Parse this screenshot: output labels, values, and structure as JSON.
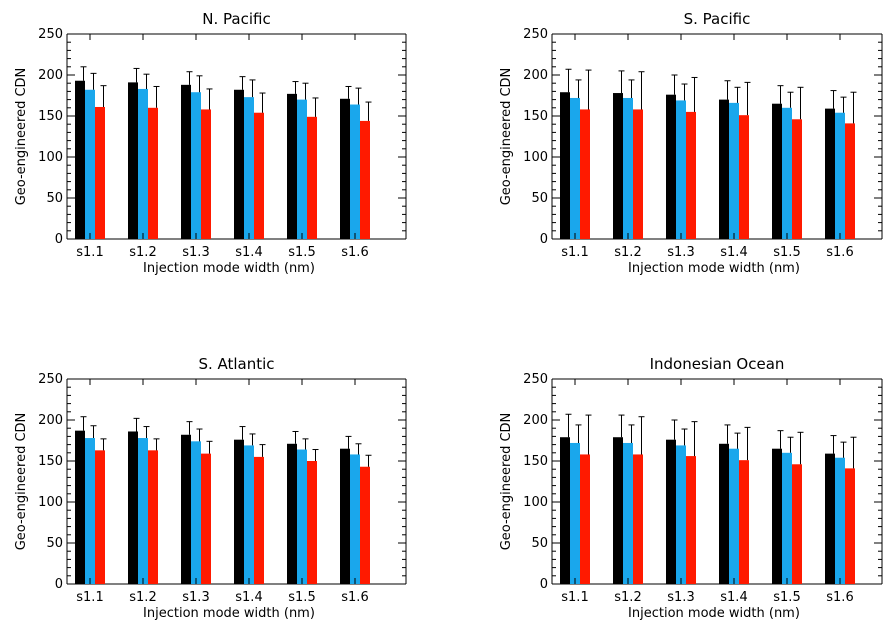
{
  "chart_data": [
    {
      "type": "bar",
      "title": "N. Pacific",
      "xlabel": "Injection mode width (nm)",
      "ylabel": "Geo-engineered CDN",
      "ylim": [
        0,
        250
      ],
      "yticks": [
        0,
        50,
        100,
        150,
        200,
        250
      ],
      "categories": [
        "s1.1",
        "s1.2",
        "s1.3",
        "s1.4",
        "s1.5",
        "s1.6"
      ],
      "series": [
        {
          "color": "#000000",
          "values": [
            193,
            191,
            188,
            182,
            177,
            171
          ],
          "errors": [
            17,
            17,
            16,
            16,
            15,
            15
          ]
        },
        {
          "color": "#1aa7ec",
          "values": [
            182,
            183,
            179,
            173,
            170,
            164
          ],
          "errors": [
            20,
            18,
            20,
            21,
            20,
            20
          ]
        },
        {
          "color": "#ff1a00",
          "values": [
            161,
            160,
            158,
            154,
            149,
            144
          ],
          "errors": [
            26,
            26,
            25,
            24,
            23,
            23
          ]
        }
      ]
    },
    {
      "type": "bar",
      "title": "S. Pacific",
      "xlabel": "Injection mode width (nm)",
      "ylabel": "Geo-engineered CDN",
      "ylim": [
        0,
        250
      ],
      "yticks": [
        0,
        50,
        100,
        150,
        200,
        250
      ],
      "categories": [
        "s1.1",
        "s1.2",
        "s1.3",
        "s1.4",
        "s1.5",
        "s1.6"
      ],
      "series": [
        {
          "color": "#000000",
          "values": [
            179,
            178,
            176,
            170,
            165,
            159
          ],
          "errors": [
            28,
            27,
            24,
            23,
            22,
            22
          ]
        },
        {
          "color": "#1aa7ec",
          "values": [
            172,
            172,
            169,
            166,
            160,
            154
          ],
          "errors": [
            22,
            22,
            20,
            19,
            19,
            19
          ]
        },
        {
          "color": "#ff1a00",
          "values": [
            158,
            158,
            155,
            151,
            146,
            141
          ],
          "errors": [
            48,
            46,
            42,
            40,
            39,
            38
          ]
        }
      ]
    },
    {
      "type": "bar",
      "title": "S. Atlantic",
      "xlabel": "Injection mode width (nm)",
      "ylabel": "Geo-engineered CDN",
      "ylim": [
        0,
        250
      ],
      "yticks": [
        0,
        50,
        100,
        150,
        200,
        250
      ],
      "categories": [
        "s1.1",
        "s1.2",
        "s1.3",
        "s1.4",
        "s1.5",
        "s1.6"
      ],
      "series": [
        {
          "color": "#000000",
          "values": [
            187,
            186,
            182,
            176,
            171,
            165
          ],
          "errors": [
            17,
            16,
            16,
            16,
            15,
            15
          ]
        },
        {
          "color": "#1aa7ec",
          "values": [
            178,
            178,
            174,
            169,
            164,
            158
          ],
          "errors": [
            15,
            14,
            15,
            14,
            13,
            13
          ]
        },
        {
          "color": "#ff1a00",
          "values": [
            163,
            163,
            159,
            155,
            150,
            143
          ],
          "errors": [
            14,
            14,
            15,
            15,
            14,
            14
          ]
        }
      ]
    },
    {
      "type": "bar",
      "title": "Indonesian Ocean",
      "xlabel": "Injection mode width (nm)",
      "ylabel": "Geo-engineered CDN",
      "ylim": [
        0,
        250
      ],
      "yticks": [
        0,
        50,
        100,
        150,
        200,
        250
      ],
      "categories": [
        "s1.1",
        "s1.2",
        "s1.3",
        "s1.4",
        "s1.5",
        "s1.6"
      ],
      "series": [
        {
          "color": "#000000",
          "values": [
            179,
            179,
            176,
            171,
            165,
            159
          ],
          "errors": [
            28,
            27,
            24,
            23,
            22,
            22
          ]
        },
        {
          "color": "#1aa7ec",
          "values": [
            172,
            172,
            169,
            165,
            160,
            154
          ],
          "errors": [
            22,
            22,
            20,
            19,
            19,
            19
          ]
        },
        {
          "color": "#ff1a00",
          "values": [
            158,
            158,
            156,
            151,
            146,
            141
          ],
          "errors": [
            48,
            46,
            42,
            40,
            39,
            38
          ]
        }
      ]
    }
  ]
}
